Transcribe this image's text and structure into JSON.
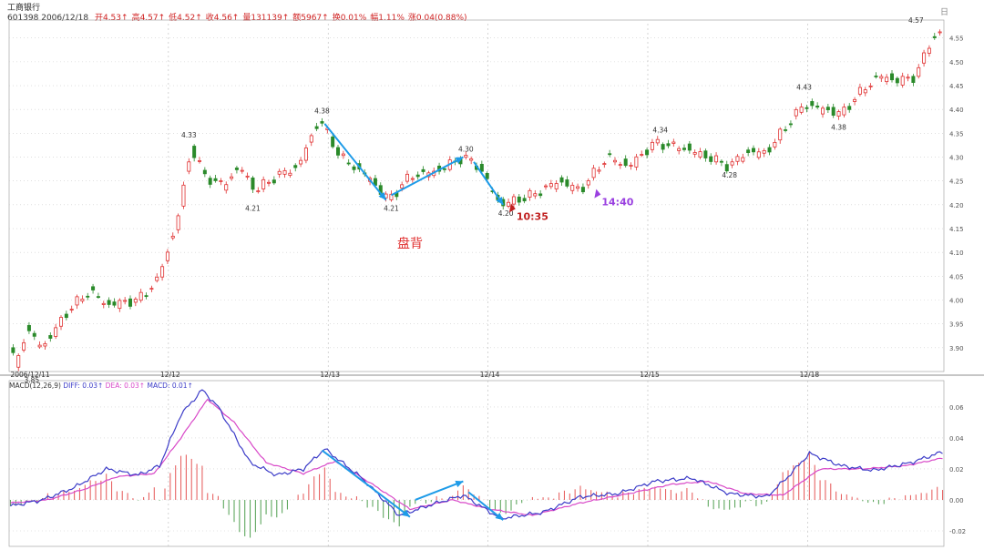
{
  "header": {
    "name": "工商银行",
    "code_date": "601398 2006/12/18",
    "fields": [
      {
        "label": "开",
        "value": "4.53↑"
      },
      {
        "label": "高",
        "value": "4.57↑"
      },
      {
        "label": "低",
        "value": "4.52↑"
      },
      {
        "label": "收",
        "value": "4.56↑"
      },
      {
        "label": "量",
        "value": "131139↑"
      },
      {
        "label": "额",
        "value": "5967↑"
      },
      {
        "label": "换",
        "value": "0.01%"
      },
      {
        "label": "幅",
        "value": "1.11%"
      },
      {
        "label": "涨",
        "value": "0.04(0.88%)"
      }
    ]
  },
  "corner_label": "日",
  "annotation": "盘背",
  "colors": {
    "up": "#e03030",
    "down": "#2a8a2a",
    "dif": "#3c3cc8",
    "dea": "#d848c8",
    "arrow": "#1e9be8",
    "annot": "#e03030",
    "cursor_red": "#c02020",
    "cursor_purple": "#9a40e0"
  },
  "chart_data": [
    {
      "type": "candlestick",
      "title": "",
      "x_labels": [
        "2006/12/11",
        "12/12",
        "12/13",
        "12/14",
        "12/15",
        "12/18"
      ],
      "y_ticks": [
        3.9,
        3.95,
        4.0,
        4.05,
        4.1,
        4.15,
        4.2,
        4.25,
        4.3,
        4.35,
        4.4,
        4.45,
        4.5,
        4.55
      ],
      "ylim": [
        3.85,
        4.58
      ],
      "y_tick_labels": [
        "3.90",
        "3.95",
        "4.00",
        "4.05",
        "4.10",
        "4.15",
        "4.20",
        "4.25",
        "4.30",
        "4.35",
        "4.40",
        "4.45",
        "4.50",
        "4.55"
      ],
      "anchors": [
        {
          "i": 0,
          "v": 3.9
        },
        {
          "i": 2,
          "v": 3.86
        },
        {
          "i": 6,
          "v": 3.94
        },
        {
          "i": 12,
          "v": 3.9
        },
        {
          "i": 22,
          "v": 3.98
        },
        {
          "i": 30,
          "v": 4.02
        },
        {
          "i": 36,
          "v": 3.99
        },
        {
          "i": 48,
          "v": 4.0
        },
        {
          "i": 55,
          "v": 4.04
        },
        {
          "i": 62,
          "v": 4.15
        },
        {
          "i": 68,
          "v": 4.32
        },
        {
          "i": 73,
          "v": 4.26
        },
        {
          "i": 80,
          "v": 4.24
        },
        {
          "i": 86,
          "v": 4.28
        },
        {
          "i": 92,
          "v": 4.23
        },
        {
          "i": 100,
          "v": 4.26
        },
        {
          "i": 108,
          "v": 4.28
        },
        {
          "i": 116,
          "v": 4.38
        },
        {
          "i": 124,
          "v": 4.3
        },
        {
          "i": 134,
          "v": 4.26
        },
        {
          "i": 142,
          "v": 4.21
        },
        {
          "i": 150,
          "v": 4.26
        },
        {
          "i": 160,
          "v": 4.27
        },
        {
          "i": 170,
          "v": 4.3
        },
        {
          "i": 176,
          "v": 4.28
        },
        {
          "i": 184,
          "v": 4.2
        },
        {
          "i": 196,
          "v": 4.22
        },
        {
          "i": 206,
          "v": 4.25
        },
        {
          "i": 214,
          "v": 4.23
        },
        {
          "i": 224,
          "v": 4.3
        },
        {
          "i": 232,
          "v": 4.28
        },
        {
          "i": 242,
          "v": 4.33
        },
        {
          "i": 252,
          "v": 4.32
        },
        {
          "i": 262,
          "v": 4.3
        },
        {
          "i": 270,
          "v": 4.28
        },
        {
          "i": 276,
          "v": 4.31
        },
        {
          "i": 284,
          "v": 4.31
        },
        {
          "i": 292,
          "v": 4.37
        },
        {
          "i": 298,
          "v": 4.41
        },
        {
          "i": 306,
          "v": 4.4
        },
        {
          "i": 312,
          "v": 4.39
        },
        {
          "i": 318,
          "v": 4.43
        },
        {
          "i": 326,
          "v": 4.47
        },
        {
          "i": 334,
          "v": 4.46
        },
        {
          "i": 340,
          "v": 4.47
        },
        {
          "i": 346,
          "v": 4.55
        },
        {
          "i": 350,
          "v": 4.56
        }
      ],
      "bar_count": 351,
      "price_labels": [
        {
          "text": "4.33",
          "i": 67,
          "v": 4.33,
          "pos": "above"
        },
        {
          "text": "4.21",
          "i": 91,
          "v": 4.21,
          "pos": "below"
        },
        {
          "text": "4.38",
          "i": 117,
          "v": 4.38,
          "pos": "above"
        },
        {
          "text": "4.21",
          "i": 143,
          "v": 4.21,
          "pos": "below"
        },
        {
          "text": "4.30",
          "i": 171,
          "v": 4.3,
          "pos": "above"
        },
        {
          "text": "4.20",
          "i": 186,
          "v": 4.2,
          "pos": "below"
        },
        {
          "text": "4.34",
          "i": 244,
          "v": 4.34,
          "pos": "above"
        },
        {
          "text": "4.28",
          "i": 270,
          "v": 4.28,
          "pos": "below"
        },
        {
          "text": "4.43",
          "i": 298,
          "v": 4.43,
          "pos": "above"
        },
        {
          "text": "4.38",
          "i": 311,
          "v": 4.38,
          "pos": "below"
        },
        {
          "text": "4.57",
          "i": 340,
          "v": 4.57,
          "pos": "above"
        },
        {
          "text": "3.85",
          "i": 8,
          "v": 3.85,
          "pos": "below"
        }
      ],
      "trend_arrows": [
        {
          "from": {
            "i": 118,
            "v": 4.37
          },
          "to": {
            "i": 141,
            "v": 4.21
          }
        },
        {
          "from": {
            "i": 143,
            "v": 4.22
          },
          "to": {
            "i": 170,
            "v": 4.3
          }
        },
        {
          "from": {
            "i": 174,
            "v": 4.29
          },
          "to": {
            "i": 185,
            "v": 4.2
          }
        }
      ],
      "time_marks": [
        {
          "text": "10:35",
          "i": 190,
          "v": 4.18,
          "color": "cursor_red"
        },
        {
          "text": "14:40",
          "i": 222,
          "v": 4.21,
          "color": "cursor_purple"
        }
      ]
    },
    {
      "type": "line",
      "title": "",
      "indicator_label": "MACD(12,26,9)",
      "series": [
        {
          "name": "DIFF",
          "value_text": "0.03↑"
        },
        {
          "name": "DEA",
          "value_text": "0.03↑"
        },
        {
          "name": "MACD",
          "value_text": "0.01↑"
        }
      ],
      "y_ticks": [
        -0.02,
        0.0,
        0.02,
        0.04,
        0.06
      ],
      "y_tick_labels": [
        "-0.02",
        "0.00",
        "0.02",
        "0.04",
        "0.06"
      ],
      "ylim": [
        -0.03,
        0.077
      ],
      "dif_anchors": [
        {
          "i": 0,
          "v": -0.004
        },
        {
          "i": 12,
          "v": 0.0
        },
        {
          "i": 24,
          "v": 0.008
        },
        {
          "i": 36,
          "v": 0.02
        },
        {
          "i": 48,
          "v": 0.016
        },
        {
          "i": 56,
          "v": 0.022
        },
        {
          "i": 64,
          "v": 0.055
        },
        {
          "i": 72,
          "v": 0.071
        },
        {
          "i": 78,
          "v": 0.06
        },
        {
          "i": 90,
          "v": 0.024
        },
        {
          "i": 100,
          "v": 0.016
        },
        {
          "i": 110,
          "v": 0.02
        },
        {
          "i": 118,
          "v": 0.033
        },
        {
          "i": 132,
          "v": 0.014
        },
        {
          "i": 146,
          "v": -0.01
        },
        {
          "i": 160,
          "v": -0.002
        },
        {
          "i": 170,
          "v": 0.003
        },
        {
          "i": 184,
          "v": -0.012
        },
        {
          "i": 200,
          "v": -0.008
        },
        {
          "i": 214,
          "v": 0.002
        },
        {
          "i": 228,
          "v": 0.004
        },
        {
          "i": 242,
          "v": 0.012
        },
        {
          "i": 256,
          "v": 0.014
        },
        {
          "i": 270,
          "v": 0.004
        },
        {
          "i": 284,
          "v": 0.002
        },
        {
          "i": 292,
          "v": 0.015
        },
        {
          "i": 300,
          "v": 0.03
        },
        {
          "i": 312,
          "v": 0.022
        },
        {
          "i": 324,
          "v": 0.019
        },
        {
          "i": 338,
          "v": 0.024
        },
        {
          "i": 350,
          "v": 0.031
        }
      ],
      "dea_anchors": [
        {
          "i": 0,
          "v": -0.002
        },
        {
          "i": 14,
          "v": 0.0
        },
        {
          "i": 28,
          "v": 0.007
        },
        {
          "i": 40,
          "v": 0.015
        },
        {
          "i": 54,
          "v": 0.017
        },
        {
          "i": 64,
          "v": 0.04
        },
        {
          "i": 74,
          "v": 0.065
        },
        {
          "i": 84,
          "v": 0.05
        },
        {
          "i": 96,
          "v": 0.024
        },
        {
          "i": 110,
          "v": 0.017
        },
        {
          "i": 122,
          "v": 0.025
        },
        {
          "i": 136,
          "v": 0.01
        },
        {
          "i": 150,
          "v": -0.006
        },
        {
          "i": 166,
          "v": 0.0
        },
        {
          "i": 180,
          "v": -0.006
        },
        {
          "i": 196,
          "v": -0.01
        },
        {
          "i": 214,
          "v": -0.002
        },
        {
          "i": 232,
          "v": 0.004
        },
        {
          "i": 248,
          "v": 0.01
        },
        {
          "i": 262,
          "v": 0.012
        },
        {
          "i": 276,
          "v": 0.004
        },
        {
          "i": 290,
          "v": 0.003
        },
        {
          "i": 304,
          "v": 0.02
        },
        {
          "i": 320,
          "v": 0.02
        },
        {
          "i": 336,
          "v": 0.022
        },
        {
          "i": 350,
          "v": 0.027
        }
      ],
      "trend_arrows": [
        {
          "from": {
            "i": 117,
            "v": 0.032
          },
          "to": {
            "i": 150,
            "v": -0.011
          }
        },
        {
          "from": {
            "i": 152,
            "v": 0.0
          },
          "to": {
            "i": 170,
            "v": 0.012
          }
        },
        {
          "from": {
            "i": 172,
            "v": 0.005
          },
          "to": {
            "i": 185,
            "v": -0.013
          }
        }
      ]
    }
  ]
}
